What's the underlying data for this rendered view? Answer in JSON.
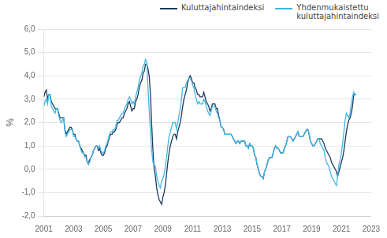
{
  "chart_data": {
    "type": "line",
    "title": "",
    "ylabel": "%",
    "x": [
      2001,
      2001.083333,
      2001.166667,
      2001.25,
      2001.333333,
      2001.416667,
      2001.5,
      2001.583333,
      2001.666667,
      2001.75,
      2001.833333,
      2001.916667,
      2002,
      2002.083333,
      2002.166667,
      2002.25,
      2002.333333,
      2002.416667,
      2002.5,
      2002.583333,
      2002.666667,
      2002.75,
      2002.833333,
      2002.916667,
      2003,
      2003.083333,
      2003.166667,
      2003.25,
      2003.333333,
      2003.416667,
      2003.5,
      2003.583333,
      2003.666667,
      2003.75,
      2003.833333,
      2003.916667,
      2004,
      2004.083333,
      2004.166667,
      2004.25,
      2004.333333,
      2004.416667,
      2004.5,
      2004.583333,
      2004.666667,
      2004.75,
      2004.833333,
      2004.916667,
      2005,
      2005.083333,
      2005.166667,
      2005.25,
      2005.333333,
      2005.416667,
      2005.5,
      2005.583333,
      2005.666667,
      2005.75,
      2005.833333,
      2005.916667,
      2006,
      2006.083333,
      2006.166667,
      2006.25,
      2006.333333,
      2006.416667,
      2006.5,
      2006.583333,
      2006.666667,
      2006.75,
      2006.833333,
      2006.916667,
      2007,
      2007.083333,
      2007.166667,
      2007.25,
      2007.333333,
      2007.416667,
      2007.5,
      2007.583333,
      2007.666667,
      2007.75,
      2007.833333,
      2007.916667,
      2008,
      2008.083333,
      2008.166667,
      2008.25,
      2008.333333,
      2008.416667,
      2008.5,
      2008.583333,
      2008.666667,
      2008.75,
      2008.833333,
      2008.916667,
      2009,
      2009.083333,
      2009.166667,
      2009.25,
      2009.333333,
      2009.416667,
      2009.5,
      2009.583333,
      2009.666667,
      2009.75,
      2009.833333,
      2009.916667,
      2010,
      2010.083333,
      2010.166667,
      2010.25,
      2010.333333,
      2010.416667,
      2010.5,
      2010.583333,
      2010.666667,
      2010.75,
      2010.833333,
      2010.916667,
      2011,
      2011.083333,
      2011.166667,
      2011.25,
      2011.333333,
      2011.416667,
      2011.5,
      2011.583333,
      2011.666667,
      2011.75,
      2011.833333,
      2011.916667,
      2012,
      2012.083333,
      2012.166667,
      2012.25,
      2012.333333,
      2012.416667,
      2012.5,
      2012.583333,
      2012.666667,
      2012.75,
      2012.833333,
      2012.916667,
      2013,
      2013.083333,
      2013.166667,
      2013.25,
      2013.333333,
      2013.416667,
      2013.5,
      2013.583333,
      2013.666667,
      2013.75,
      2013.833333,
      2013.916667,
      2014,
      2014.083333,
      2014.166667,
      2014.25,
      2014.333333,
      2014.416667,
      2014.5,
      2014.583333,
      2014.666667,
      2014.75,
      2014.833333,
      2014.916667,
      2015,
      2015.083333,
      2015.166667,
      2015.25,
      2015.333333,
      2015.416667,
      2015.5,
      2015.583333,
      2015.666667,
      2015.75,
      2015.833333,
      2015.916667,
      2016,
      2016.083333,
      2016.166667,
      2016.25,
      2016.333333,
      2016.416667,
      2016.5,
      2016.583333,
      2016.666667,
      2016.75,
      2016.833333,
      2016.916667,
      2017,
      2017.083333,
      2017.166667,
      2017.25,
      2017.333333,
      2017.416667,
      2017.5,
      2017.583333,
      2017.666667,
      2017.75,
      2017.833333,
      2017.916667,
      2018,
      2018.083333,
      2018.166667,
      2018.25,
      2018.333333,
      2018.416667,
      2018.5,
      2018.583333,
      2018.666667,
      2018.75,
      2018.833333,
      2018.916667,
      2019,
      2019.083333,
      2019.166667,
      2019.25,
      2019.333333,
      2019.416667,
      2019.5,
      2019.583333,
      2019.666667,
      2019.75,
      2019.833333,
      2019.916667,
      2020,
      2020.083333,
      2020.166667,
      2020.25,
      2020.333333,
      2020.416667,
      2020.5,
      2020.583333,
      2020.666667,
      2020.75,
      2020.833333,
      2020.916667,
      2021,
      2021.083333,
      2021.166667,
      2021.25,
      2021.333333,
      2021.416667,
      2021.5,
      2021.583333,
      2021.666667,
      2021.75,
      2021.833333,
      2021.916667,
      2022
    ],
    "series": [
      {
        "name": "Yhdenmukaistettu\nkuluttajahintaindeksi",
        "color": "#41b6e6",
        "values": [
          2.7,
          2.9,
          3.0,
          2.8,
          3.2,
          3.2,
          2.7,
          2.6,
          2.5,
          2.4,
          2.6,
          2.6,
          2.3,
          2.1,
          2.0,
          2.1,
          2.2,
          1.6,
          1.4,
          1.5,
          1.6,
          1.7,
          1.7,
          1.7,
          1.4,
          1.4,
          1.3,
          1.2,
          1.2,
          1.0,
          0.8,
          0.7,
          0.7,
          0.5,
          0.5,
          0.3,
          0.2,
          0.3,
          0.5,
          0.6,
          0.8,
          0.9,
          1.0,
          1.0,
          0.9,
          1.0,
          0.8,
          0.7,
          0.7,
          0.8,
          1.0,
          1.1,
          1.3,
          1.5,
          1.6,
          1.6,
          1.7,
          1.7,
          1.8,
          2.1,
          2.1,
          2.2,
          2.3,
          2.4,
          2.4,
          2.6,
          2.7,
          2.8,
          3.0,
          3.1,
          3.0,
          2.8,
          2.9,
          2.8,
          3.1,
          3.3,
          3.5,
          3.8,
          4.0,
          4.1,
          4.4,
          4.5,
          4.7,
          4.6,
          3.5,
          2.5,
          1.6,
          0.8,
          0.3,
          0.2,
          0.1,
          -0.3,
          -0.5,
          -0.7,
          -0.8,
          -0.5,
          -0.4,
          -0.2,
          0.1,
          0.5,
          1.0,
          1.4,
          1.6,
          1.8,
          2.0,
          2.0,
          2.0,
          1.7,
          2.0,
          2.3,
          2.6,
          3.0,
          3.5,
          3.5,
          3.5,
          3.7,
          3.8,
          3.9,
          3.9,
          3.8,
          3.6,
          3.5,
          3.2,
          3.0,
          2.8,
          2.9,
          2.8,
          2.8,
          2.8,
          3.0,
          2.9,
          2.7,
          2.5,
          2.4,
          2.3,
          2.5,
          2.7,
          2.7,
          2.7,
          2.5,
          2.4,
          2.2,
          2.1,
          1.8,
          1.8,
          1.7,
          1.5,
          1.5,
          1.5,
          1.5,
          1.5,
          1.5,
          1.4,
          1.3,
          1.2,
          1.1,
          1.2,
          1.2,
          1.1,
          1.2,
          1.2,
          1.2,
          1.2,
          1.0,
          1.0,
          0.9,
          1.1,
          1.0,
          1.0,
          0.9,
          0.6,
          0.5,
          0.2,
          0.0,
          -0.2,
          -0.3,
          -0.3,
          -0.4,
          -0.1,
          0.0,
          0.2,
          0.4,
          0.5,
          0.5,
          0.5,
          0.7,
          0.9,
          1.0,
          0.9,
          0.9,
          0.8,
          0.7,
          0.7,
          0.7,
          0.9,
          1.0,
          1.2,
          1.4,
          1.4,
          1.4,
          1.3,
          1.2,
          1.3,
          1.4,
          1.5,
          1.6,
          1.4,
          1.4,
          1.4,
          1.4,
          1.5,
          1.6,
          1.7,
          1.7,
          1.5,
          1.2,
          1.1,
          1.0,
          1.0,
          1.1,
          1.2,
          1.3,
          1.3,
          1.1,
          1.0,
          0.9,
          0.8,
          0.5,
          0.3,
          0.2,
          0.1,
          -0.1,
          -0.3,
          -0.4,
          -0.5,
          -0.6,
          -0.7,
          -0.3,
          0.2,
          0.4,
          0.7,
          1.1,
          1.6,
          2.1,
          2.4,
          2.3,
          2.2,
          2.4,
          2.8,
          3.1,
          3.3,
          3.2,
          3.2
        ]
      },
      {
        "name": "Kuluttajahintaindeksi",
        "color": "#1a3a5c",
        "values": [
          3.1,
          3.3,
          3.4,
          3.0,
          3.2,
          3.2,
          2.9,
          2.8,
          2.7,
          2.6,
          2.6,
          2.6,
          2.4,
          2.2,
          2.2,
          2.2,
          2.2,
          1.7,
          1.5,
          1.6,
          1.7,
          1.8,
          1.8,
          1.7,
          1.5,
          1.5,
          1.3,
          1.2,
          1.2,
          1.0,
          0.9,
          0.8,
          0.7,
          0.6,
          0.6,
          0.3,
          0.3,
          0.4,
          0.5,
          0.6,
          0.8,
          0.9,
          1.0,
          1.0,
          0.8,
          0.9,
          0.7,
          0.6,
          0.6,
          0.7,
          0.9,
          1.0,
          1.2,
          1.4,
          1.5,
          1.5,
          1.6,
          1.6,
          1.7,
          1.9,
          2.0,
          2.0,
          2.1,
          2.2,
          2.2,
          2.4,
          2.5,
          2.6,
          2.8,
          2.9,
          2.7,
          2.5,
          2.6,
          2.6,
          2.9,
          3.0,
          3.2,
          3.5,
          3.7,
          3.8,
          4.1,
          4.2,
          4.5,
          4.5,
          4.3,
          4.0,
          3.2,
          1.9,
          0.8,
          0.0,
          -0.3,
          -0.8,
          -1.1,
          -1.3,
          -1.4,
          -1.5,
          -1.2,
          -1.0,
          -0.7,
          -0.2,
          0.3,
          0.7,
          1.0,
          1.2,
          1.4,
          1.5,
          1.5,
          1.3,
          1.6,
          1.8,
          2.0,
          2.3,
          2.7,
          3.0,
          3.2,
          3.4,
          3.7,
          3.9,
          4.0,
          3.9,
          3.7,
          3.7,
          3.5,
          3.4,
          3.2,
          3.2,
          3.1,
          3.1,
          3.1,
          3.3,
          3.1,
          2.9,
          2.8,
          2.7,
          2.5,
          2.6,
          2.8,
          2.8,
          2.8,
          2.6,
          2.6,
          2.3,
          2.1,
          1.8,
          1.8,
          1.7,
          1.5,
          1.5,
          1.5,
          1.5,
          1.5,
          1.5,
          1.4,
          1.3,
          1.2,
          1.1,
          1.2,
          1.2,
          1.1,
          1.2,
          1.2,
          1.2,
          1.2,
          1.0,
          1.0,
          0.9,
          1.1,
          1.0,
          1.0,
          0.9,
          0.6,
          0.5,
          0.2,
          0.0,
          -0.2,
          -0.3,
          -0.3,
          -0.4,
          -0.1,
          0.0,
          0.2,
          0.4,
          0.5,
          0.5,
          0.5,
          0.7,
          0.9,
          1.0,
          0.9,
          0.9,
          0.8,
          0.7,
          0.7,
          0.7,
          0.9,
          1.0,
          1.2,
          1.4,
          1.4,
          1.4,
          1.3,
          1.2,
          1.3,
          1.4,
          1.5,
          1.6,
          1.4,
          1.4,
          1.4,
          1.4,
          1.5,
          1.6,
          1.7,
          1.7,
          1.5,
          1.2,
          1.1,
          1.0,
          1.0,
          1.1,
          1.2,
          1.3,
          1.3,
          1.3,
          1.3,
          1.2,
          1.1,
          0.9,
          0.8,
          0.7,
          0.6,
          0.5,
          0.3,
          0.2,
          0.1,
          0.0,
          -0.1,
          -0.3,
          -0.1,
          0.1,
          0.3,
          0.5,
          0.8,
          1.2,
          1.6,
          1.9,
          2.1,
          2.2,
          2.4,
          2.7,
          3.2,
          3.2,
          3.2
        ]
      }
    ],
    "legend_order": null,
    "xlim": [
      2001,
      2023
    ],
    "xticks": [
      2001,
      2003,
      2005,
      2007,
      2009,
      2011,
      2013,
      2015,
      2017,
      2019,
      2021,
      2023
    ],
    "ylim": [
      -2.0,
      6.0
    ],
    "yticks": [
      {
        "value": -2.0,
        "label": "-2,0"
      },
      {
        "value": -1.0,
        "label": "-1,0"
      },
      {
        "value": 0.0,
        "label": "0,0"
      },
      {
        "value": 1.0,
        "label": "1,0"
      },
      {
        "value": 2.0,
        "label": "2,0"
      },
      {
        "value": 3.0,
        "label": "3,0"
      },
      {
        "value": 4.0,
        "label": "4,0"
      },
      {
        "value": 5.0,
        "label": "5,0"
      },
      {
        "value": 6.0,
        "label": "6,0"
      }
    ],
    "grid": true,
    "legend": "top-right"
  }
}
